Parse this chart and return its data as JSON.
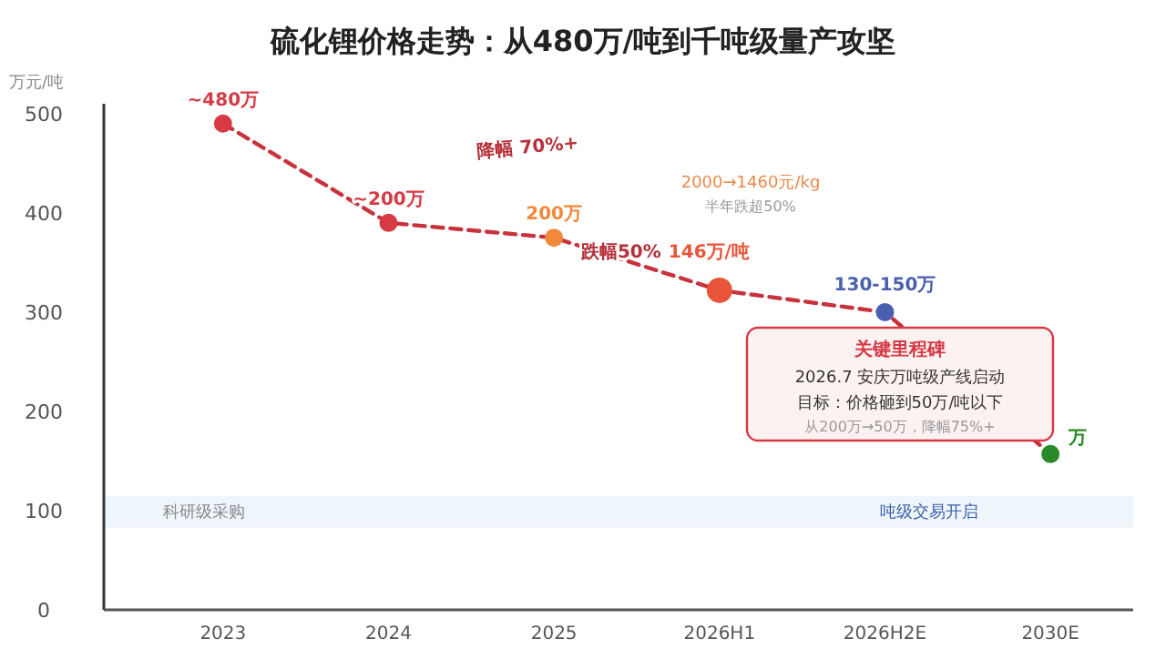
{
  "chart_data": {
    "type": "line",
    "title": "硫化锂价格走势：从480万/吨到千吨级量产攻坚",
    "ylabel": "万元/吨",
    "categories": [
      "2023",
      "2024",
      "2025",
      "2026H1",
      "2026H2E",
      "2030E"
    ],
    "series": [
      {
        "color": "#c8323c",
        "values": [
          490,
          390,
          375,
          322,
          300,
          157
        ],
        "colors": [
          "#d63a45",
          "#d63a45",
          "#f08a3a",
          "#e8553a",
          "#4a5fb0",
          "#2a8a2a"
        ]
      }
    ],
    "line_style": "dashed",
    "marker": "circle",
    "grid": false,
    "ylim": [
      0,
      510
    ],
    "yticks": [
      0,
      100,
      200,
      300,
      400,
      500
    ],
    "bands": [
      {
        "axis": "y",
        "from": 83,
        "to": 115,
        "color": "#eef5fb"
      }
    ],
    "annotations": [
      "降幅 70%+",
      "2000→1460元/kg",
      "半年跌超50%",
      "跌幅50%",
      "关键里程碑",
      "2026.7 安庆万吨级产线启动",
      "目标：价格砸到50万/吨以下",
      "从200万→50万，降幅75%+",
      "科研级采购",
      "吨级交易开启",
      {
        "text": "~480万",
        "x": "2023",
        "y": 490
      },
      {
        "text": "~200万",
        "x": "2024",
        "y": 390
      },
      {
        "text": "200万",
        "x": "2025",
        "y": 375
      },
      {
        "text": "146万/吨",
        "x": "2026H1",
        "y": 322
      },
      {
        "text": "130-150万",
        "x": "2026H2E",
        "y": 300
      },
      {
        "text": "万",
        "x": "2030E",
        "y": 157
      }
    ]
  }
}
